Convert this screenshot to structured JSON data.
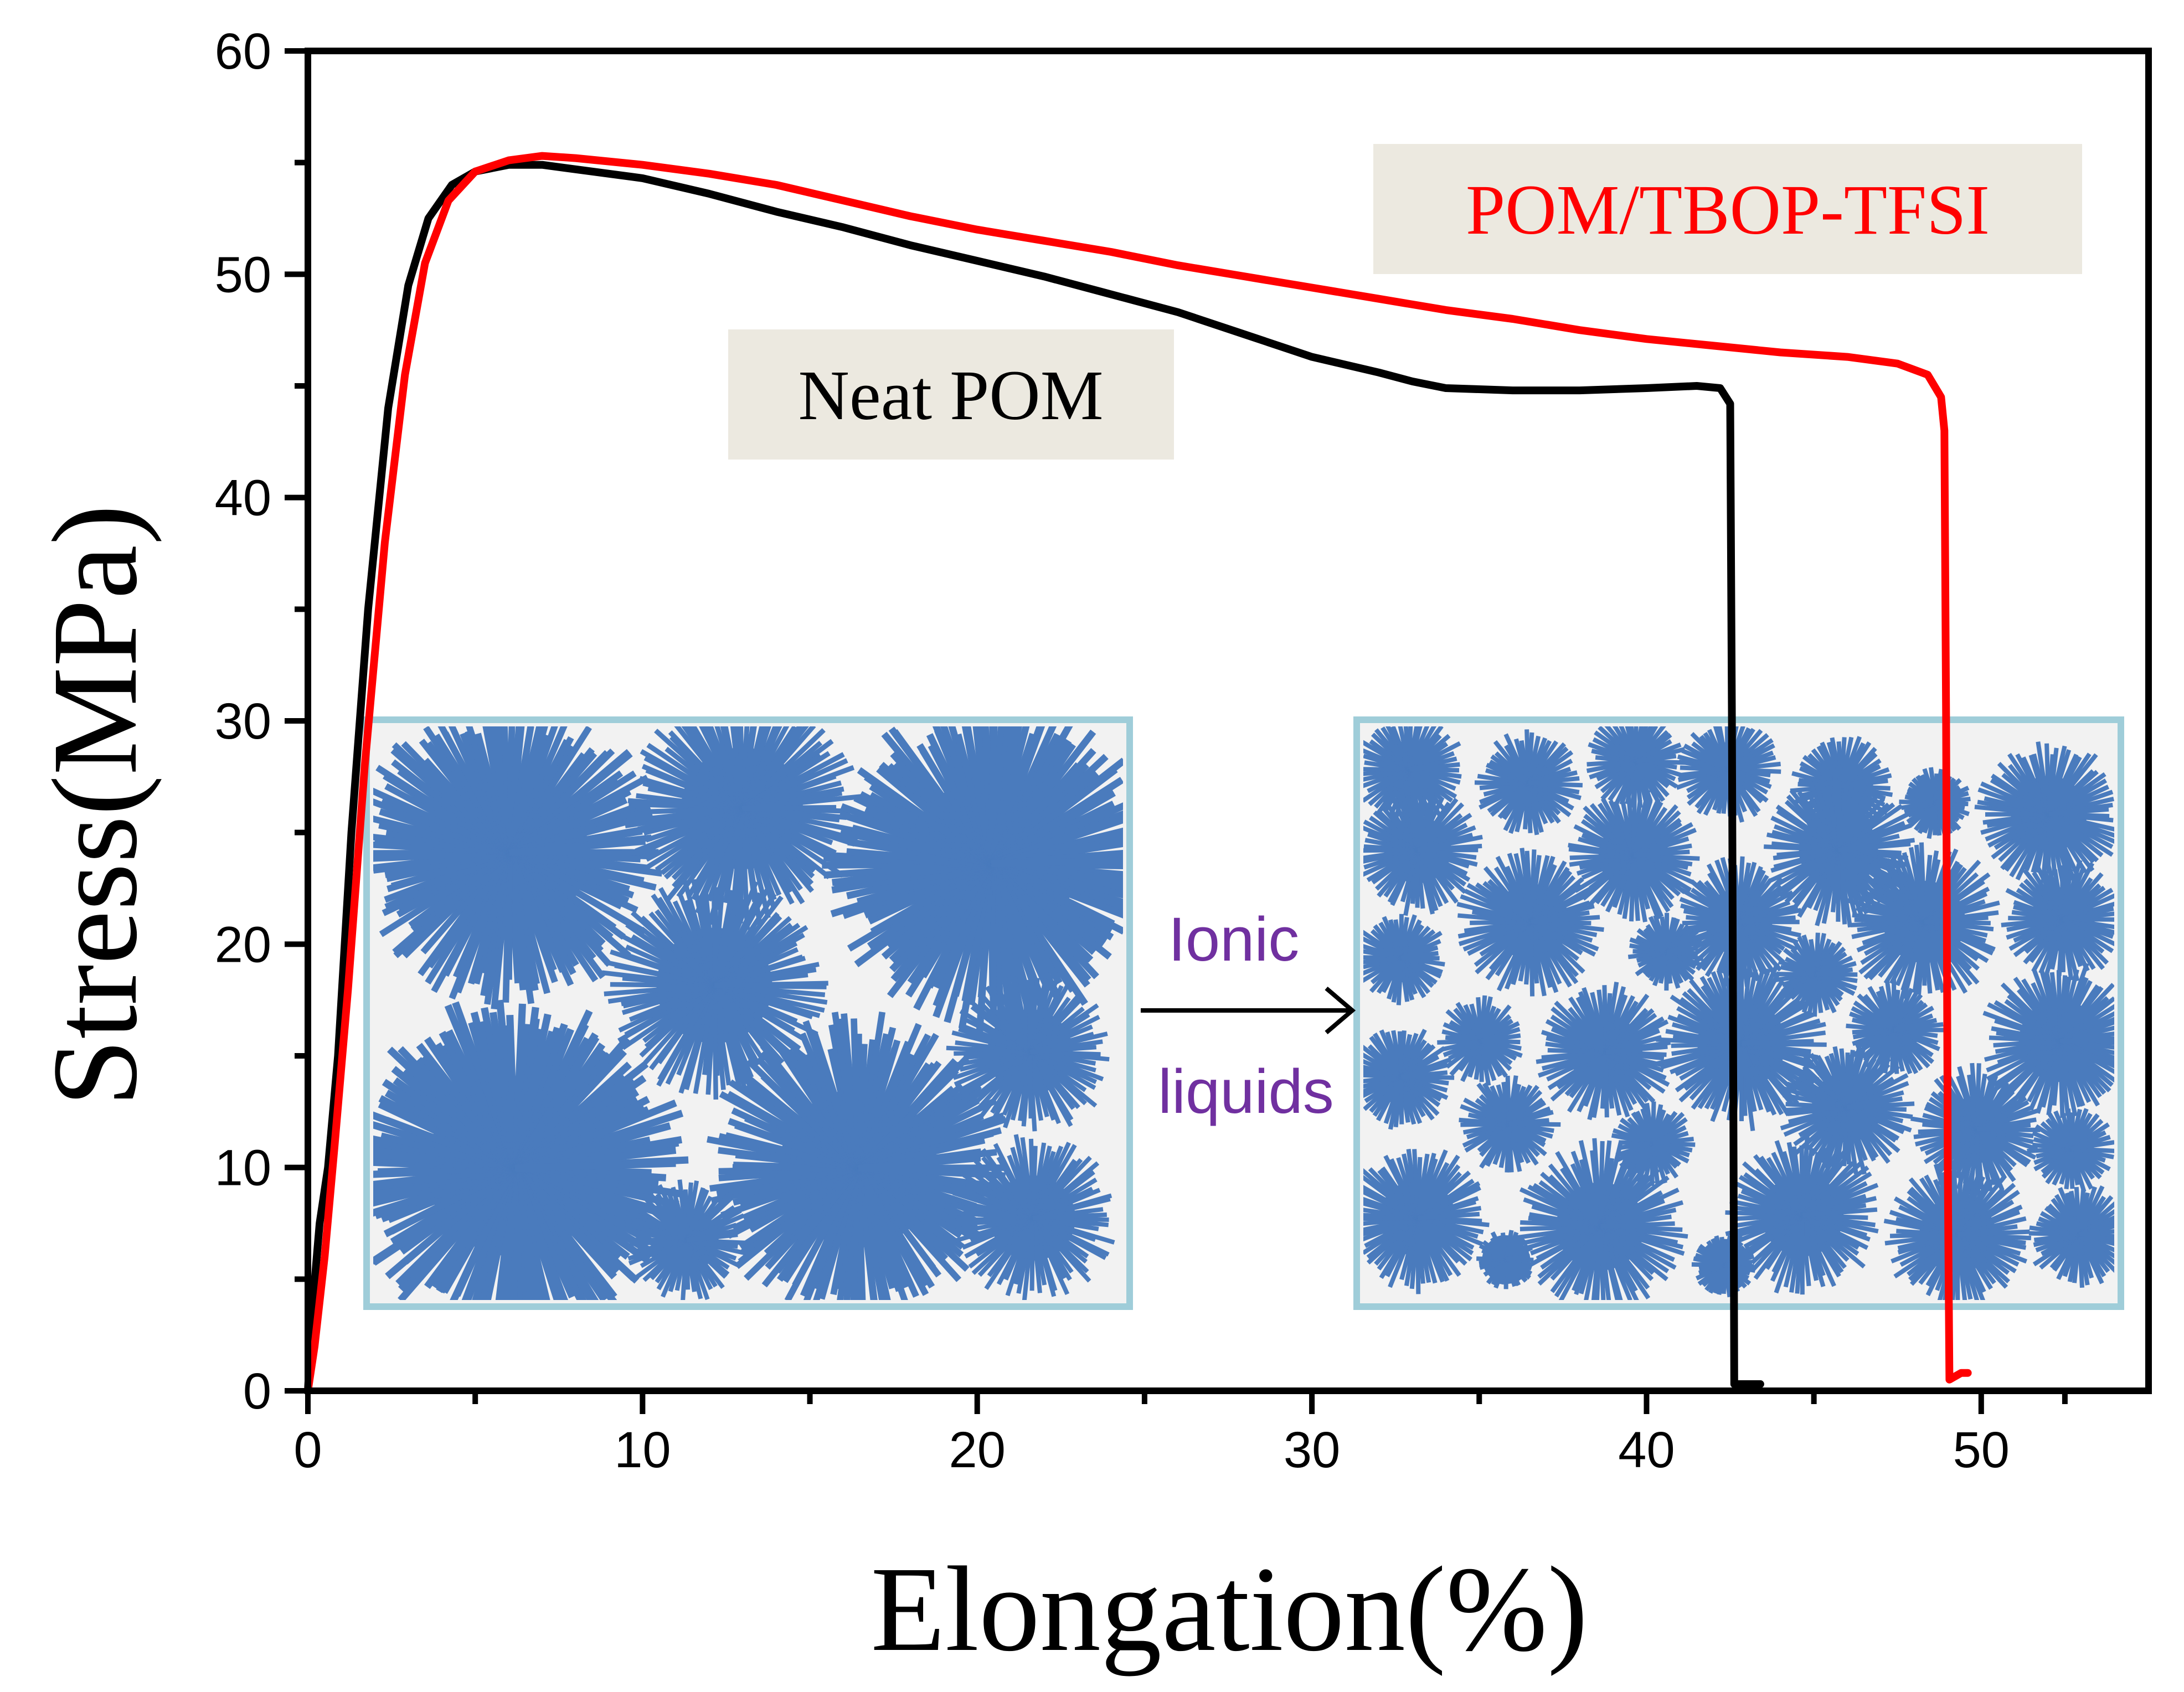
{
  "chart_data": {
    "type": "line",
    "title": "",
    "xlabel": "Elongation(%)",
    "ylabel": "Stress(MPa)",
    "xlim": [
      0,
      55
    ],
    "ylim": [
      0,
      60
    ],
    "xticks": [
      0,
      10,
      20,
      30,
      40,
      50
    ],
    "yticks": [
      0,
      10,
      20,
      30,
      40,
      50,
      60
    ],
    "grid": false,
    "series": [
      {
        "name": "Neat POM",
        "color": "#000000",
        "points": [
          [
            0.0,
            0.0
          ],
          [
            0.15,
            4.0
          ],
          [
            0.35,
            7.5
          ],
          [
            0.6,
            10
          ],
          [
            0.9,
            15
          ],
          [
            1.3,
            25
          ],
          [
            1.8,
            35
          ],
          [
            2.4,
            44
          ],
          [
            3.0,
            49.5
          ],
          [
            3.6,
            52.5
          ],
          [
            4.3,
            54.0
          ],
          [
            5.0,
            54.6
          ],
          [
            6.0,
            54.9
          ],
          [
            7.0,
            54.9
          ],
          [
            8.0,
            54.7
          ],
          [
            10.0,
            54.3
          ],
          [
            12.0,
            53.6
          ],
          [
            14.0,
            52.8
          ],
          [
            16.0,
            52.1
          ],
          [
            18.0,
            51.3
          ],
          [
            20.0,
            50.6
          ],
          [
            22.0,
            49.9
          ],
          [
            24.0,
            49.1
          ],
          [
            26.0,
            48.3
          ],
          [
            28.0,
            47.3
          ],
          [
            30.0,
            46.3
          ],
          [
            32.0,
            45.6
          ],
          [
            33.0,
            45.2
          ],
          [
            34.0,
            44.9
          ],
          [
            36.0,
            44.8
          ],
          [
            38.0,
            44.8
          ],
          [
            40.0,
            44.9
          ],
          [
            41.5,
            45.0
          ],
          [
            42.2,
            44.9
          ],
          [
            42.5,
            44.2
          ],
          [
            42.55,
            30.0
          ],
          [
            42.6,
            10.0
          ],
          [
            42.62,
            0.3
          ],
          [
            43.4,
            0.3
          ]
        ]
      },
      {
        "name": "POM/TBOP-TFSI",
        "color": "#ff0000",
        "points": [
          [
            0.0,
            0.0
          ],
          [
            0.2,
            2.0
          ],
          [
            0.5,
            6.0
          ],
          [
            0.8,
            11.0
          ],
          [
            1.2,
            18.0
          ],
          [
            1.7,
            28.0
          ],
          [
            2.3,
            38.0
          ],
          [
            2.9,
            45.5
          ],
          [
            3.5,
            50.5
          ],
          [
            4.2,
            53.3
          ],
          [
            5.0,
            54.6
          ],
          [
            6.0,
            55.1
          ],
          [
            7.0,
            55.3
          ],
          [
            8.0,
            55.2
          ],
          [
            10.0,
            54.9
          ],
          [
            12.0,
            54.5
          ],
          [
            14.0,
            54.0
          ],
          [
            16.0,
            53.3
          ],
          [
            18.0,
            52.6
          ],
          [
            20.0,
            52.0
          ],
          [
            22.0,
            51.5
          ],
          [
            24.0,
            51.0
          ],
          [
            26.0,
            50.4
          ],
          [
            28.0,
            49.9
          ],
          [
            30.0,
            49.4
          ],
          [
            32.0,
            48.9
          ],
          [
            34.0,
            48.4
          ],
          [
            36.0,
            48.0
          ],
          [
            38.0,
            47.5
          ],
          [
            40.0,
            47.1
          ],
          [
            42.0,
            46.8
          ],
          [
            44.0,
            46.5
          ],
          [
            46.0,
            46.3
          ],
          [
            47.5,
            46.0
          ],
          [
            48.4,
            45.5
          ],
          [
            48.8,
            44.5
          ],
          [
            48.9,
            43.0
          ],
          [
            48.95,
            30.0
          ],
          [
            49.0,
            10.0
          ],
          [
            49.05,
            0.5
          ],
          [
            49.4,
            0.8
          ],
          [
            49.6,
            0.8
          ]
        ]
      }
    ],
    "annotations": [
      {
        "id": "neat",
        "text": "Neat POM",
        "color": "#000000",
        "background": "#ece9e0"
      },
      {
        "id": "ionic",
        "text": "POM/TBOP-TFSI",
        "color": "#ff0000",
        "background": "#ece9e0"
      }
    ],
    "insets": {
      "arrow_label_line1": "Ionic",
      "arrow_label_line2": "liquids",
      "border_color": "#9fcdd9",
      "fill_color": "#4a7bbd",
      "background_color": "#f2f2f2"
    }
  }
}
